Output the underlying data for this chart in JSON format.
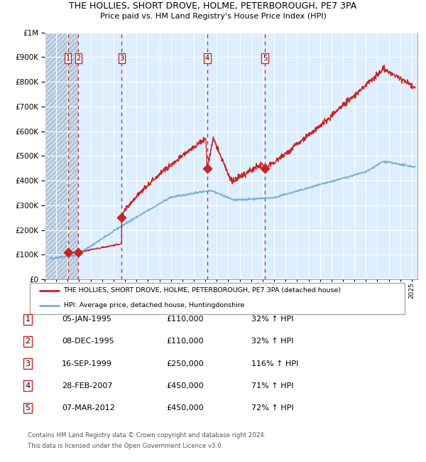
{
  "title": "THE HOLLIES, SHORT DROVE, HOLME, PETERBOROUGH, PE7 3PA",
  "subtitle": "Price paid vs. HM Land Registry's House Price Index (HPI)",
  "legend_line1": "THE HOLLIES, SHORT DROVE, HOLME, PETERBOROUGH, PE7 3PA (detached house)",
  "legend_line2": "HPI: Average price, detached house, Huntingdonshire",
  "footer_line1": "Contains HM Land Registry data © Crown copyright and database right 2024.",
  "footer_line2": "This data is licensed under the Open Government Licence v3.0.",
  "transactions": [
    {
      "num": 1,
      "date": "05-JAN-1995",
      "price": 110000,
      "hpi_pct": "32% ↑ HPI",
      "x": 1995.014
    },
    {
      "num": 2,
      "date": "08-DEC-1995",
      "price": 110000,
      "hpi_pct": "32% ↑ HPI",
      "x": 1995.936
    },
    {
      "num": 3,
      "date": "16-SEP-1999",
      "price": 250000,
      "hpi_pct": "116% ↑ HPI",
      "x": 1999.708
    },
    {
      "num": 4,
      "date": "28-FEB-2007",
      "price": 450000,
      "hpi_pct": "71% ↑ HPI",
      "x": 2007.162
    },
    {
      "num": 5,
      "date": "07-MAR-2012",
      "price": 450000,
      "hpi_pct": "72% ↑ HPI",
      "x": 2012.184
    }
  ],
  "trans_marker_prices": [
    110000,
    110000,
    250000,
    450000,
    450000
  ],
  "hpi_color": "#7bafd4",
  "price_color": "#cc2222",
  "bg_color": "#ddeeff",
  "grid_color": "#ffffff",
  "vline_color": "#cc2222",
  "ylim": [
    0,
    1000000
  ],
  "xlim_start": 1993.0,
  "xlim_end": 2025.5,
  "hatch_end": 1995.936,
  "table_rows": [
    [
      "1",
      "05-JAN-1995",
      "£110,000",
      "32% ↑ HPI"
    ],
    [
      "2",
      "08-DEC-1995",
      "£110,000",
      "32% ↑ HPI"
    ],
    [
      "3",
      "16-SEP-1999",
      "£250,000",
      "116% ↑ HPI"
    ],
    [
      "4",
      "28-FEB-2007",
      "£450,000",
      "71% ↑ HPI"
    ],
    [
      "5",
      "07-MAR-2012",
      "£450,000",
      "72% ↑ HPI"
    ]
  ]
}
